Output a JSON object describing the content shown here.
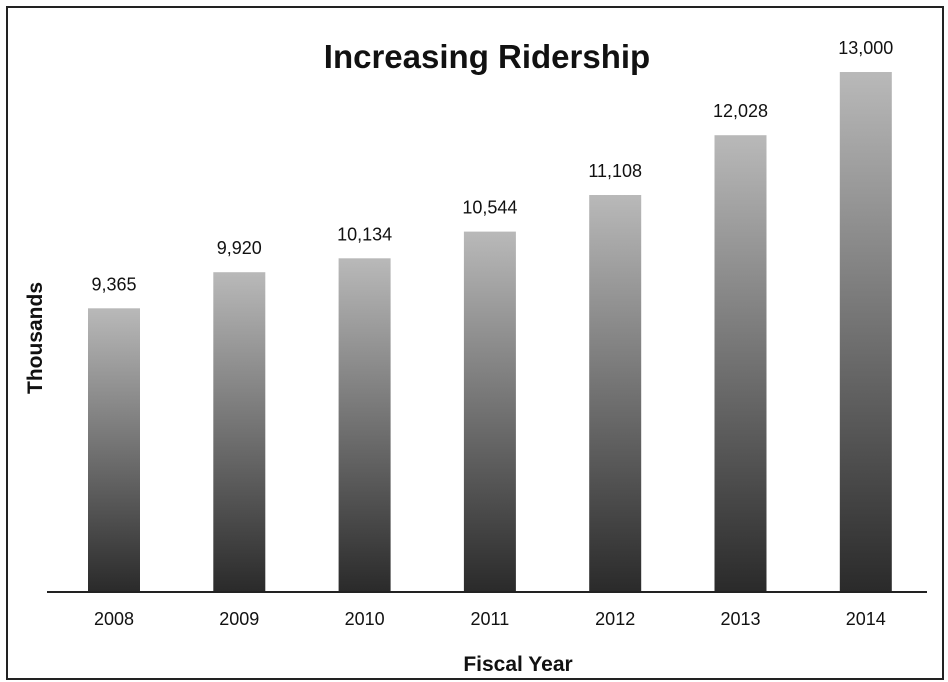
{
  "chart_data": {
    "type": "bar",
    "title": "Increasing Ridership",
    "xlabel": "Fiscal Year",
    "ylabel": "Thousands",
    "categories": [
      "2008",
      "2009",
      "2010",
      "2011",
      "2012",
      "2013",
      "2014"
    ],
    "values": [
      9365,
      9920,
      10134,
      10544,
      11108,
      12028,
      13000
    ],
    "data_labels": [
      "9,365",
      "9,920",
      "10,134",
      "10,544",
      "11,108",
      "12,028",
      "13,000"
    ],
    "ylim": [
      5000,
      13000
    ],
    "grid": false,
    "legend": "none",
    "colors": {
      "bar_top": "#b9b9b9",
      "bar_bottom": "#2a2a2a",
      "axis": "#222222",
      "text": "#111111"
    }
  }
}
